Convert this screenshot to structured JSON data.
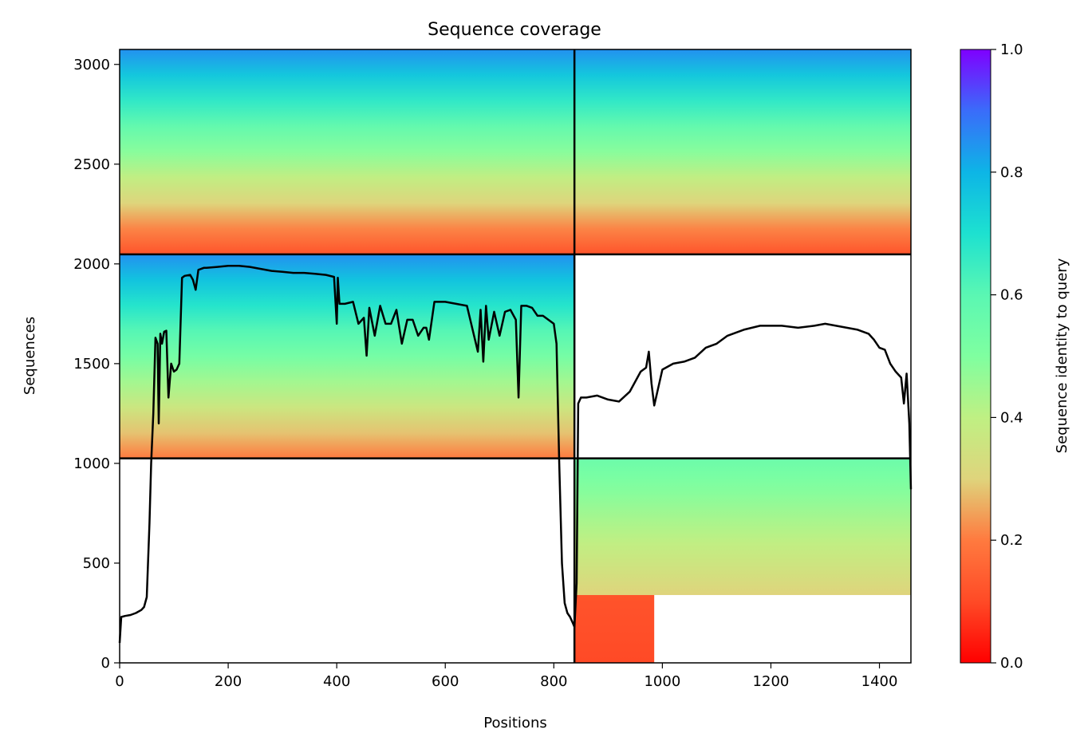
{
  "chart_data": {
    "type": "heatmap",
    "title": "Sequence coverage",
    "xlabel": "Positions",
    "ylabel": "Sequences",
    "xlim": [
      0,
      1458
    ],
    "ylim": [
      0,
      3075
    ],
    "xticks": [
      0,
      200,
      400,
      600,
      800,
      1000,
      1200,
      1400
    ],
    "yticks": [
      0,
      500,
      1000,
      1500,
      2000,
      2500,
      3000
    ],
    "colorbar": {
      "label": "Sequence identity to query",
      "range": [
        0,
        1
      ],
      "ticks": [
        0.0,
        0.2,
        0.4,
        0.6,
        0.8,
        1.0
      ],
      "colormap": "rainbow_r",
      "colors": [
        "#ff0000",
        "#ff7a3f",
        "#dfd47c",
        "#7fffa0",
        "#0db5e6",
        "#7f00ff"
      ]
    },
    "block_boundaries": {
      "x": [
        838
      ],
      "y": [
        1025,
        2048
      ]
    },
    "coverage_blocks": [
      {
        "x": [
          0,
          838
        ],
        "y": [
          2048,
          3075
        ],
        "identity_low": 0.12,
        "identity_high": 0.85
      },
      {
        "x": [
          838,
          1458
        ],
        "y": [
          2048,
          3075
        ],
        "identity_low": 0.12,
        "identity_high": 0.85
      },
      {
        "x": [
          0,
          838
        ],
        "y": [
          1025,
          2048
        ],
        "identity_low": 0.2,
        "identity_high": 0.85
      },
      {
        "x": [
          838,
          1458
        ],
        "y": [
          340,
          1025
        ],
        "identity_low": 0.3,
        "identity_high": 0.55
      },
      {
        "x": [
          838,
          985
        ],
        "y": [
          0,
          340
        ],
        "identity_low": 0.1,
        "identity_high": 0.12
      }
    ],
    "coverage_line": {
      "x": [
        0,
        3,
        10,
        20,
        30,
        40,
        45,
        50,
        55,
        58,
        62,
        66,
        70,
        72,
        75,
        78,
        82,
        86,
        90,
        95,
        100,
        105,
        110,
        115,
        120,
        130,
        135,
        140,
        145,
        150,
        155,
        160,
        180,
        200,
        220,
        240,
        260,
        280,
        300,
        320,
        340,
        360,
        380,
        395,
        400,
        402,
        405,
        415,
        430,
        440,
        450,
        455,
        460,
        470,
        480,
        490,
        500,
        510,
        520,
        530,
        540,
        550,
        560,
        565,
        570,
        580,
        600,
        620,
        640,
        660,
        665,
        670,
        675,
        680,
        690,
        700,
        710,
        720,
        730,
        735,
        740,
        750,
        760,
        770,
        780,
        790,
        800,
        805,
        810,
        815,
        820,
        825,
        830,
        835,
        838,
        842,
        845,
        850,
        860,
        880,
        900,
        920,
        940,
        960,
        970,
        975,
        980,
        985,
        990,
        1000,
        1020,
        1040,
        1060,
        1080,
        1100,
        1120,
        1150,
        1180,
        1200,
        1210,
        1220,
        1250,
        1280,
        1300,
        1320,
        1340,
        1360,
        1380,
        1390,
        1400,
        1410,
        1420,
        1430,
        1440,
        1445,
        1450,
        1455,
        1458
      ],
      "y": [
        100,
        230,
        235,
        240,
        250,
        265,
        280,
        330,
        700,
        1000,
        1250,
        1630,
        1600,
        1200,
        1650,
        1600,
        1660,
        1665,
        1330,
        1500,
        1460,
        1470,
        1500,
        1930,
        1940,
        1945,
        1920,
        1870,
        1970,
        1975,
        1980,
        1980,
        1985,
        1990,
        1990,
        1985,
        1975,
        1965,
        1960,
        1955,
        1955,
        1950,
        1945,
        1935,
        1700,
        1930,
        1800,
        1800,
        1810,
        1700,
        1730,
        1540,
        1780,
        1640,
        1790,
        1700,
        1700,
        1770,
        1600,
        1720,
        1720,
        1640,
        1680,
        1680,
        1620,
        1810,
        1810,
        1800,
        1790,
        1560,
        1770,
        1510,
        1790,
        1620,
        1760,
        1640,
        1760,
        1770,
        1720,
        1330,
        1790,
        1790,
        1780,
        1740,
        1740,
        1720,
        1700,
        1600,
        1000,
        500,
        300,
        250,
        230,
        200,
        180,
        400,
        1300,
        1330,
        1330,
        1340,
        1320,
        1310,
        1360,
        1460,
        1480,
        1560,
        1400,
        1290,
        1350,
        1470,
        1500,
        1510,
        1530,
        1580,
        1600,
        1640,
        1670,
        1690,
        1690,
        1690,
        1690,
        1680,
        1690,
        1700,
        1690,
        1680,
        1670,
        1650,
        1620,
        1580,
        1570,
        1500,
        1460,
        1430,
        1300,
        1450,
        1200,
        870
      ]
    }
  }
}
